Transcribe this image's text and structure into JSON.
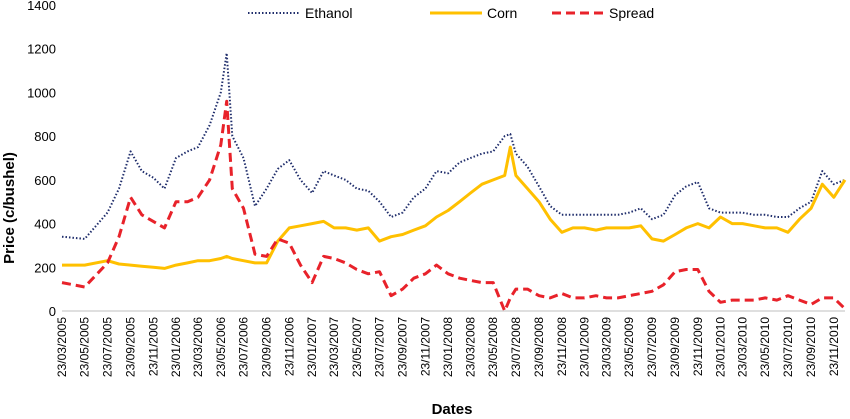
{
  "chart_data": {
    "type": "line",
    "title": "",
    "xlabel": "Dates",
    "ylabel": "Price (c/bushel)",
    "ylim": [
      0,
      1400
    ],
    "yticks": [
      0,
      200,
      400,
      600,
      800,
      1000,
      1200,
      1400
    ],
    "grid": false,
    "legend_position": "top-center",
    "x_tick_labels": [
      "23/03/2005",
      "23/05/2005",
      "23/07/2005",
      "23/09/2005",
      "23/11/2005",
      "23/01/2006",
      "23/03/2006",
      "23/05/2006",
      "23/07/2006",
      "23/09/2006",
      "23/11/2006",
      "23/01/2007",
      "23/03/2007",
      "23/05/2007",
      "23/07/2007",
      "23/09/2007",
      "23/11/2007",
      "23/01/2008",
      "23/03/2008",
      "23/05/2008",
      "23/07/2008",
      "23/09/2008",
      "23/11/2008",
      "23/01/2009",
      "23/03/2009",
      "23/05/2009",
      "23/07/2009",
      "23/09/2009",
      "23/11/2009",
      "23/01/2010",
      "23/03/2010",
      "23/05/2010",
      "23/07/2010",
      "23/09/2010",
      "23/11/2010"
    ],
    "x": [
      "23/03/2005",
      "23/05/2005",
      "23/07/2005",
      "23/08/2005",
      "23/09/2005",
      "23/10/2005",
      "23/11/2005",
      "23/12/2005",
      "23/01/2006",
      "23/02/2006",
      "23/03/2006",
      "23/04/2006",
      "23/05/2006",
      "08/06/2006",
      "23/06/2006",
      "23/07/2006",
      "23/08/2006",
      "23/09/2006",
      "23/10/2006",
      "23/11/2006",
      "23/12/2006",
      "23/01/2007",
      "23/02/2007",
      "23/03/2007",
      "23/04/2007",
      "23/05/2007",
      "23/06/2007",
      "23/07/2007",
      "23/08/2007",
      "23/09/2007",
      "23/10/2007",
      "23/11/2007",
      "23/12/2007",
      "23/01/2008",
      "23/02/2008",
      "23/03/2008",
      "23/04/2008",
      "23/05/2008",
      "23/06/2008",
      "08/07/2008",
      "23/07/2008",
      "23/08/2008",
      "23/09/2008",
      "23/10/2008",
      "23/11/2008",
      "23/12/2008",
      "23/01/2009",
      "23/02/2009",
      "23/03/2009",
      "23/04/2009",
      "23/05/2009",
      "23/06/2009",
      "23/07/2009",
      "23/08/2009",
      "23/09/2009",
      "23/10/2009",
      "23/11/2009",
      "23/12/2009",
      "23/01/2010",
      "23/02/2010",
      "23/03/2010",
      "23/04/2010",
      "23/05/2010",
      "23/06/2010",
      "23/07/2010",
      "23/08/2010",
      "23/09/2010",
      "23/10/2010",
      "23/11/2010",
      "23/12/2010"
    ],
    "series": [
      {
        "name": "Ethanol",
        "color": "#1f2d6b",
        "style": "dotted",
        "values": [
          340,
          330,
          450,
          560,
          730,
          640,
          610,
          560,
          700,
          730,
          750,
          850,
          1000,
          1180,
          800,
          700,
          480,
          560,
          650,
          690,
          600,
          540,
          640,
          620,
          600,
          560,
          550,
          500,
          430,
          450,
          520,
          560,
          640,
          630,
          680,
          700,
          720,
          730,
          800,
          810,
          720,
          660,
          570,
          480,
          440,
          440,
          440,
          440,
          440,
          440,
          450,
          470,
          420,
          440,
          530,
          570,
          590,
          470,
          450,
          450,
          450,
          440,
          440,
          430,
          430,
          470,
          500,
          640,
          580,
          600
        ]
      },
      {
        "name": "Corn",
        "color": "#ffc000",
        "style": "solid",
        "values": [
          210,
          210,
          230,
          215,
          210,
          205,
          200,
          195,
          210,
          220,
          230,
          230,
          240,
          250,
          240,
          230,
          220,
          220,
          320,
          380,
          390,
          400,
          410,
          380,
          380,
          370,
          380,
          320,
          340,
          350,
          370,
          390,
          430,
          460,
          500,
          540,
          580,
          600,
          620,
          750,
          620,
          560,
          500,
          420,
          360,
          380,
          380,
          370,
          380,
          380,
          380,
          390,
          330,
          320,
          350,
          380,
          400,
          380,
          430,
          400,
          400,
          390,
          380,
          380,
          360,
          420,
          470,
          580,
          520,
          600
        ]
      },
      {
        "name": "Spread",
        "color": "#e8222a",
        "style": "dashed",
        "values": [
          130,
          110,
          220,
          340,
          520,
          440,
          410,
          380,
          500,
          500,
          520,
          600,
          760,
          960,
          560,
          470,
          260,
          250,
          330,
          310,
          210,
          130,
          250,
          240,
          220,
          190,
          170,
          180,
          70,
          100,
          150,
          170,
          210,
          170,
          150,
          140,
          130,
          130,
          0,
          60,
          100,
          100,
          70,
          60,
          80,
          60,
          60,
          70,
          60,
          60,
          70,
          80,
          90,
          120,
          180,
          190,
          190,
          90,
          40,
          50,
          50,
          50,
          60,
          50,
          70,
          50,
          30,
          60,
          60,
          10
        ]
      }
    ]
  }
}
